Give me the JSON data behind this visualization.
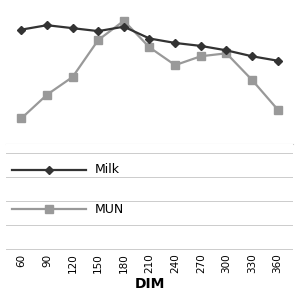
{
  "x": [
    60,
    90,
    120,
    150,
    180,
    210,
    240,
    270,
    300,
    330,
    360
  ],
  "milk": [
    9.2,
    9.5,
    9.3,
    9.1,
    9.4,
    8.6,
    8.3,
    8.1,
    7.8,
    7.4,
    7.1
  ],
  "mun": [
    3.2,
    4.8,
    6.0,
    8.5,
    9.8,
    8.0,
    6.8,
    7.4,
    7.6,
    5.8,
    3.8
  ],
  "milk_color": "#333333",
  "mun_color": "#999999",
  "milk_label": "Milk",
  "mun_label": "MUN",
  "xlabel": "DIM",
  "xlabel_fontsize": 10,
  "xlabel_fontweight": "bold",
  "xticks": [
    60,
    90,
    120,
    150,
    180,
    210,
    240,
    270,
    300,
    330,
    360
  ],
  "background_color": "#ffffff",
  "grid_color": "#cccccc",
  "grid_linewidth": 0.7,
  "line_linewidth": 1.6,
  "milk_markersize": 4,
  "mun_markersize": 6,
  "tick_fontsize": 7.5,
  "legend_fontsize": 9,
  "ylim_min": 1.5,
  "ylim_max": 10.8,
  "xlim_min": 42,
  "xlim_max": 378
}
